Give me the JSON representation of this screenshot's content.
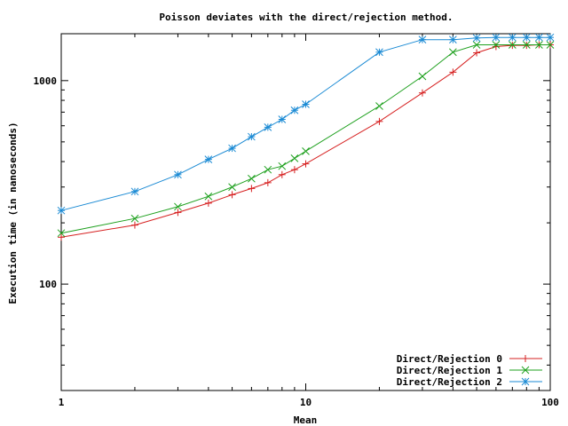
{
  "chart_data": {
    "type": "line",
    "title": "Poisson deviates with the direct/rejection method.",
    "xlabel": "Mean",
    "ylabel": "Execution time (in nanoseconds)",
    "x_scale": "log",
    "y_scale": "log",
    "xlim": [
      1,
      100
    ],
    "ylim": [
      30,
      1700
    ],
    "grid": false,
    "legend_position": "bottom-right",
    "x_ticks": [
      {
        "value": 1,
        "label": "1"
      },
      {
        "value": 10,
        "label": "10"
      },
      {
        "value": 100,
        "label": "100"
      }
    ],
    "y_ticks": [
      {
        "value": 100,
        "label": "100"
      },
      {
        "value": 1000,
        "label": "1000"
      }
    ],
    "x": [
      1,
      2,
      3,
      4,
      5,
      6,
      7,
      8,
      9,
      10,
      20,
      30,
      40,
      50,
      60,
      70,
      80,
      90,
      100
    ],
    "series": [
      {
        "name": "Direct/Rejection 0",
        "color": "#d62020",
        "marker": "plus",
        "values": [
          170,
          195,
          225,
          250,
          275,
          295,
          315,
          345,
          365,
          390,
          630,
          870,
          1100,
          1370,
          1470,
          1490,
          1490,
          1500,
          1500
        ]
      },
      {
        "name": "Direct/Rejection 1",
        "color": "#1ea01e",
        "marker": "cross",
        "values": [
          178,
          210,
          240,
          270,
          300,
          330,
          365,
          380,
          415,
          450,
          750,
          1050,
          1380,
          1500,
          1500,
          1500,
          1500,
          1500,
          1500
        ]
      },
      {
        "name": "Direct/Rejection 2",
        "color": "#1a8ad4",
        "marker": "star",
        "values": [
          230,
          285,
          345,
          410,
          465,
          530,
          590,
          645,
          715,
          765,
          1380,
          1590,
          1590,
          1620,
          1630,
          1630,
          1630,
          1630,
          1630
        ]
      }
    ]
  }
}
